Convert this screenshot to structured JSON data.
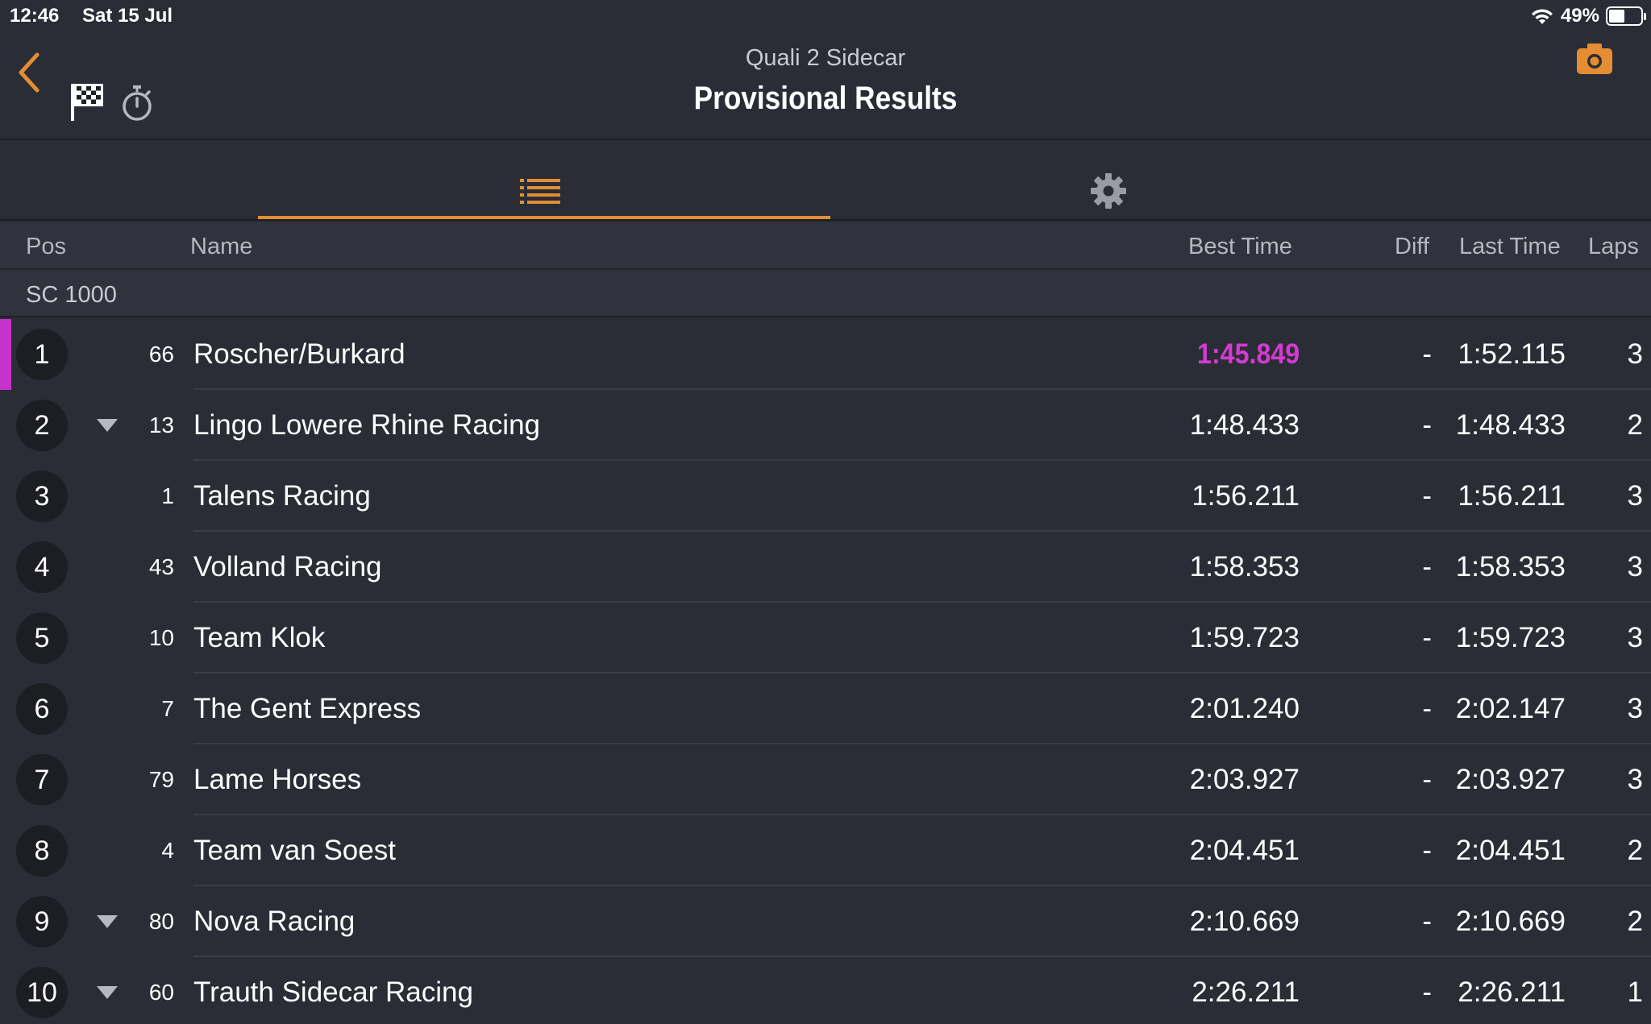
{
  "status_bar": {
    "time": "12:46",
    "date": "Sat 15 Jul",
    "battery": "49%",
    "battery_level": 0.49
  },
  "header": {
    "subtitle": "Quali 2 Sidecar",
    "title": "Provisional Results"
  },
  "columns": {
    "pos": "Pos",
    "name": "Name",
    "best": "Best Time",
    "diff": "Diff",
    "last": "Last Time",
    "laps": "Laps"
  },
  "class_name": "SC 1000",
  "colors": {
    "accent": "#e48d32",
    "fastest": "#d53ad2",
    "background": "#2a2d36"
  },
  "rows": [
    {
      "pos": "1",
      "bib": "66",
      "name": "Roscher/Burkard",
      "best": "1:45.849",
      "diff": "-",
      "last": "1:52.115",
      "laps": "3",
      "fastest": true,
      "change": ""
    },
    {
      "pos": "2",
      "bib": "13",
      "name": "Lingo Lowere Rhine Racing",
      "best": "1:48.433",
      "diff": "-",
      "last": "1:48.433",
      "laps": "2",
      "fastest": false,
      "change": "down"
    },
    {
      "pos": "3",
      "bib": "1",
      "name": "Talens Racing",
      "best": "1:56.211",
      "diff": "-",
      "last": "1:56.211",
      "laps": "3",
      "fastest": false,
      "change": ""
    },
    {
      "pos": "4",
      "bib": "43",
      "name": "Volland Racing",
      "best": "1:58.353",
      "diff": "-",
      "last": "1:58.353",
      "laps": "3",
      "fastest": false,
      "change": ""
    },
    {
      "pos": "5",
      "bib": "10",
      "name": "Team Klok",
      "best": "1:59.723",
      "diff": "-",
      "last": "1:59.723",
      "laps": "3",
      "fastest": false,
      "change": ""
    },
    {
      "pos": "6",
      "bib": "7",
      "name": "The Gent Express",
      "best": "2:01.240",
      "diff": "-",
      "last": "2:02.147",
      "laps": "3",
      "fastest": false,
      "change": ""
    },
    {
      "pos": "7",
      "bib": "79",
      "name": "Lame Horses",
      "best": "2:03.927",
      "diff": "-",
      "last": "2:03.927",
      "laps": "3",
      "fastest": false,
      "change": ""
    },
    {
      "pos": "8",
      "bib": "4",
      "name": "Team van Soest",
      "best": "2:04.451",
      "diff": "-",
      "last": "2:04.451",
      "laps": "2",
      "fastest": false,
      "change": ""
    },
    {
      "pos": "9",
      "bib": "80",
      "name": "Nova Racing",
      "best": "2:10.669",
      "diff": "-",
      "last": "2:10.669",
      "laps": "2",
      "fastest": false,
      "change": "down"
    },
    {
      "pos": "10",
      "bib": "60",
      "name": "Trauth Sidecar Racing",
      "best": "2:26.211",
      "diff": "-",
      "last": "2:26.211",
      "laps": "1",
      "fastest": false,
      "change": "down"
    }
  ]
}
